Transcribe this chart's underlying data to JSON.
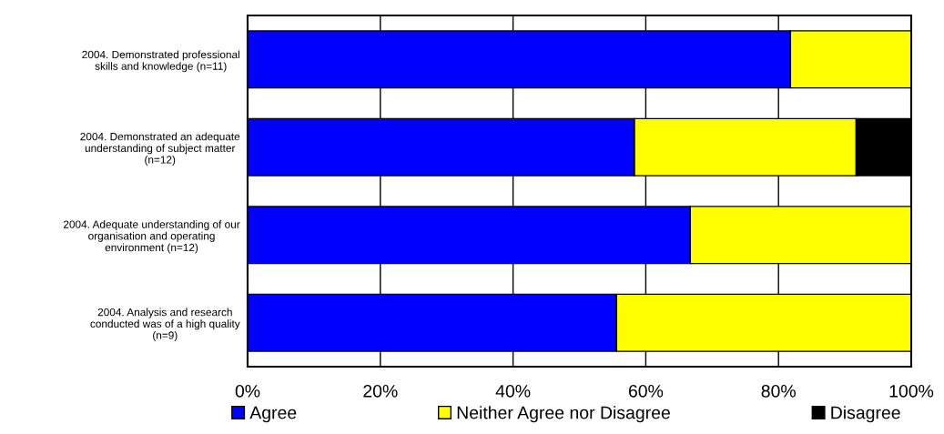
{
  "chart_data": {
    "type": "bar",
    "orientation": "horizontal",
    "stacked": true,
    "categories": [
      "2004. Demonstrated professional skills and knowledge (n=11)",
      "2004. Demonstrated an adequate understanding of subject matter (n=12)",
      "2004. Adequate understanding of our organisation and operating environment (n=12)",
      "2004. Analysis and research conducted was of a high quality (n=9)"
    ],
    "series": [
      {
        "name": "Agree",
        "color": "#0000ff",
        "values": [
          81.8,
          58.3,
          66.7,
          55.6
        ]
      },
      {
        "name": "Neither Agree nor Disagree",
        "color": "#ffff00",
        "values": [
          18.2,
          33.4,
          33.3,
          44.4
        ]
      },
      {
        "name": "Disagree",
        "color": "#000000",
        "values": [
          0,
          8.3,
          0,
          0
        ]
      }
    ],
    "xlim": [
      0,
      100
    ],
    "xticks": [
      {
        "value": 0,
        "label": "0%"
      },
      {
        "value": 20,
        "label": "20%"
      },
      {
        "value": 40,
        "label": "40%"
      },
      {
        "value": 60,
        "label": "60%"
      },
      {
        "value": 80,
        "label": "80%"
      },
      {
        "value": 100,
        "label": "100%"
      }
    ],
    "grid": "x",
    "legend": "bottom"
  }
}
